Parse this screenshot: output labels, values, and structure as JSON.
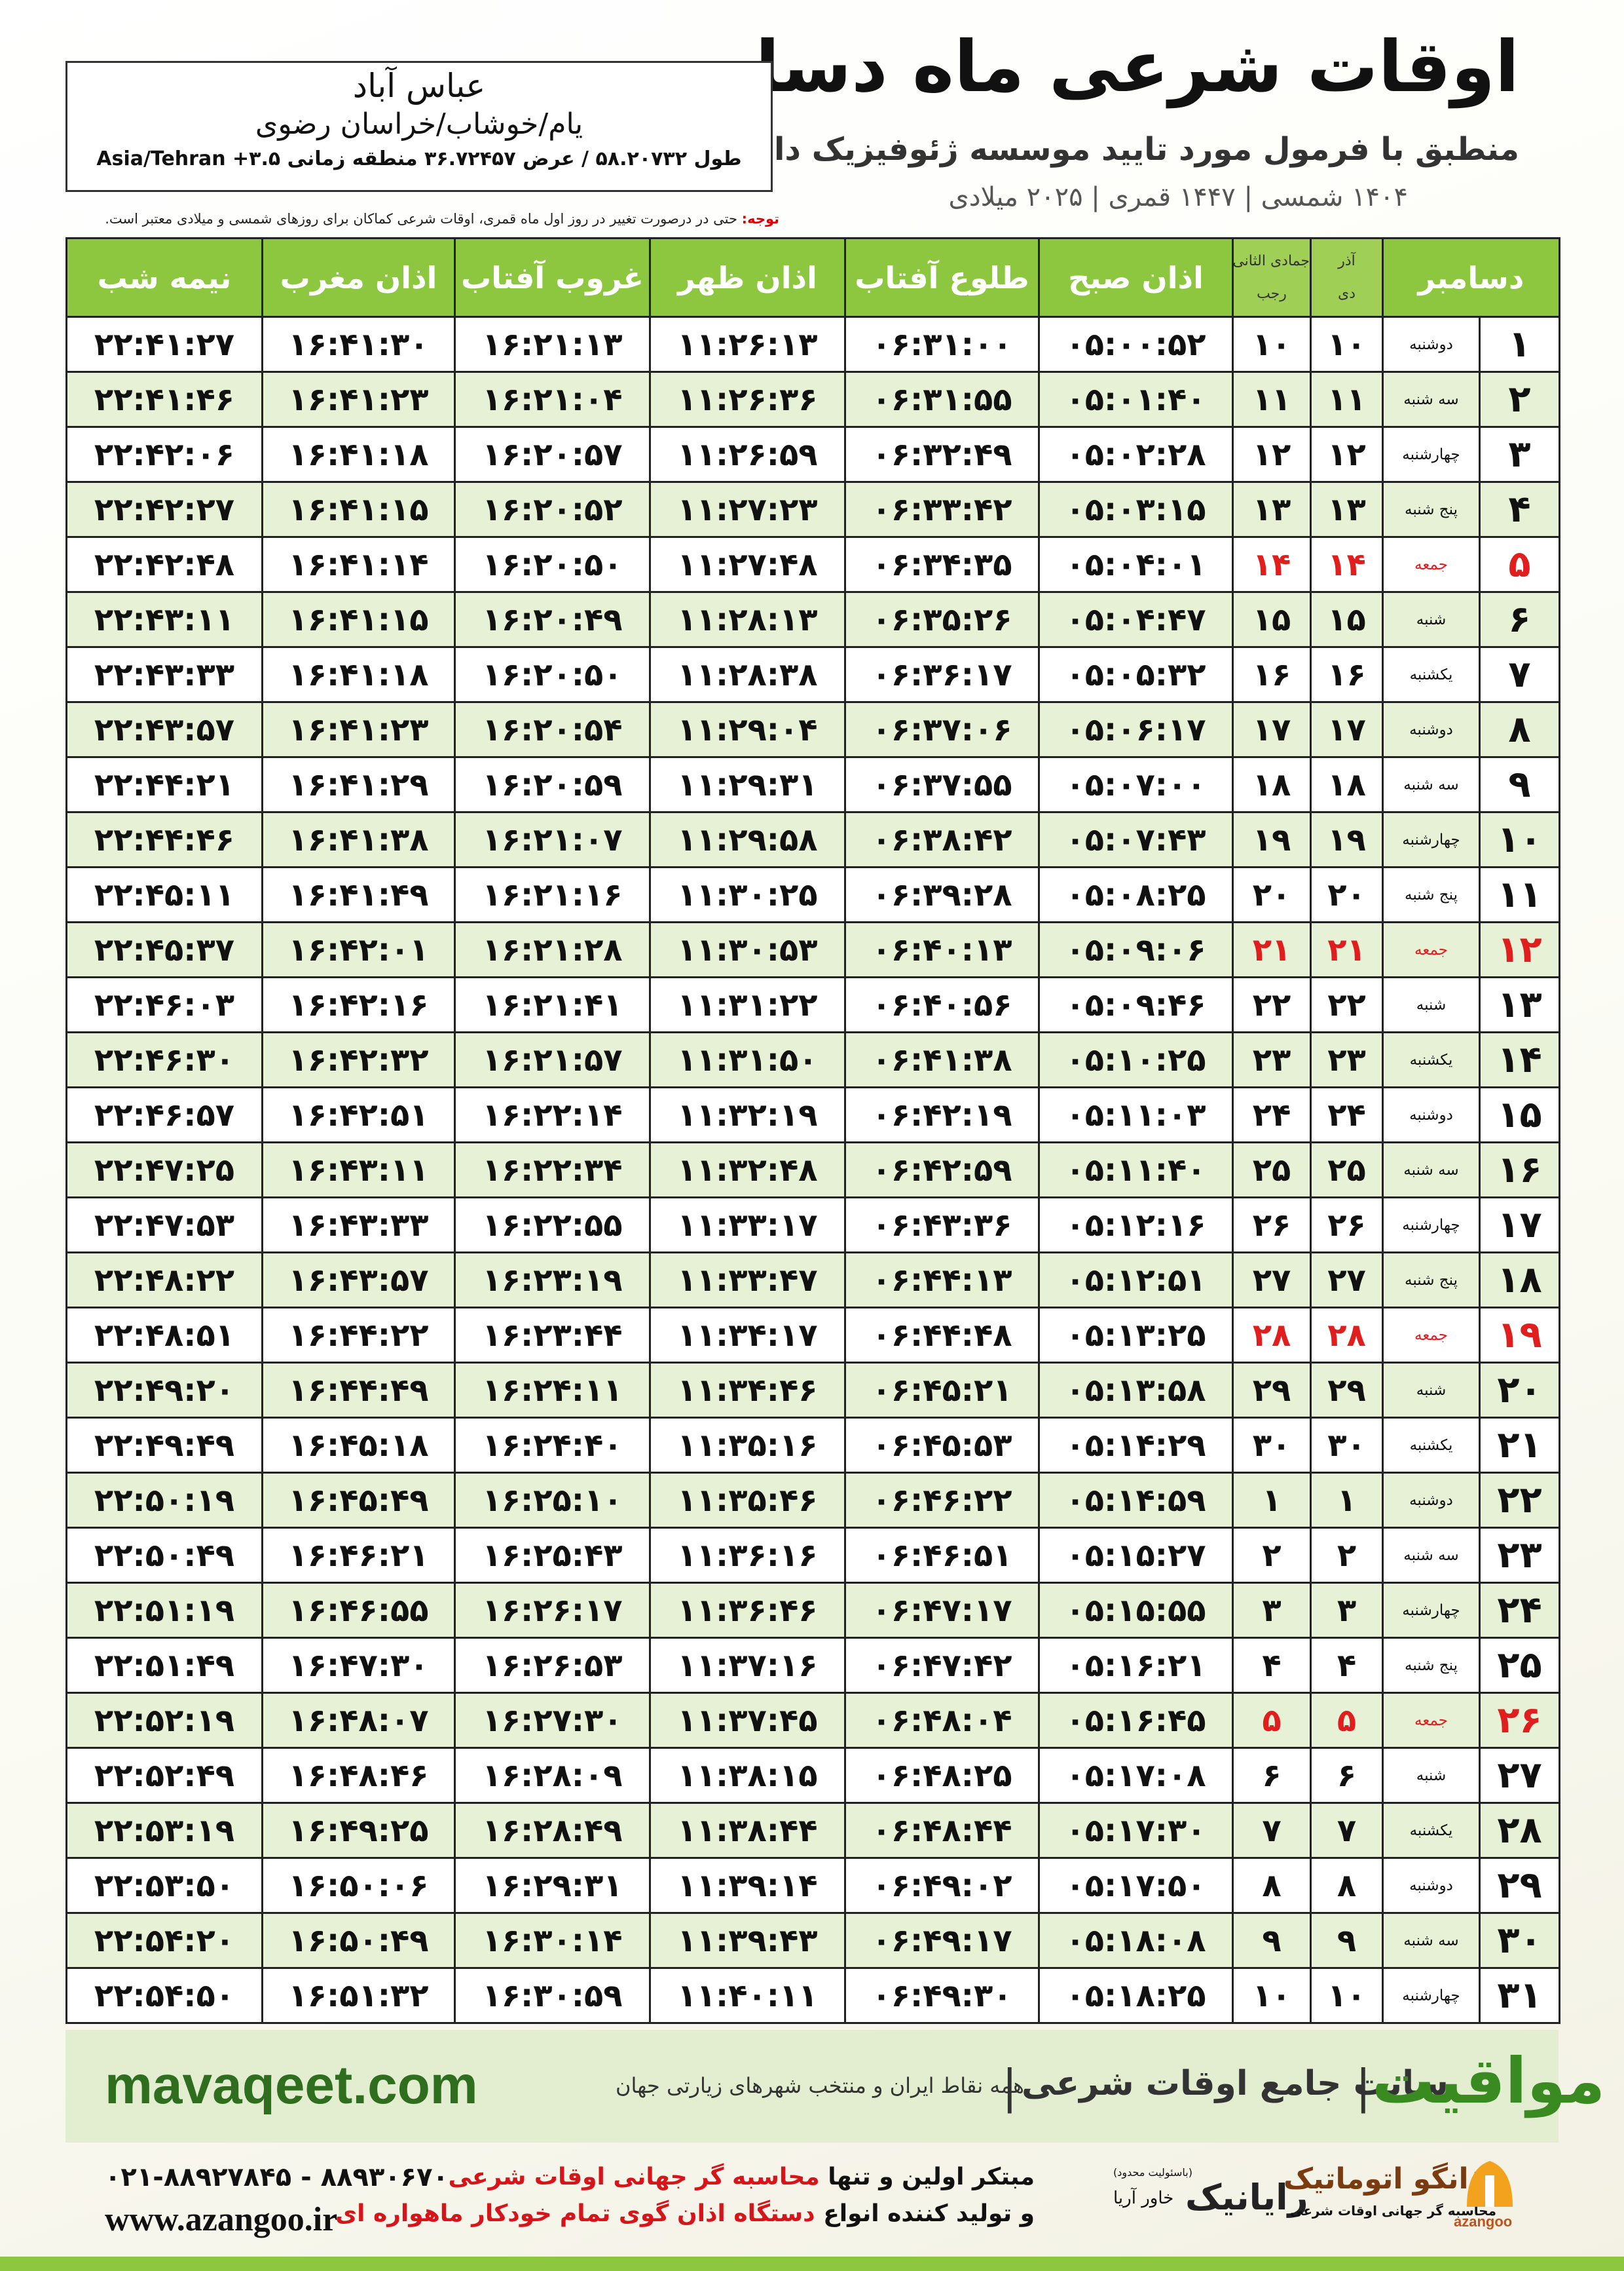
{
  "header": {
    "title": "اوقات شرعی ماه دسامبر",
    "subtitle": "منطبق با فرمول مورد تایید موسسه ژئوفیزیک دانشگاه تهران",
    "dates": "۱۴۰۴ شمسی | ۱۴۴۷ قمری | ۲۰۲۵ میلادی"
  },
  "location": {
    "name": "عباس آباد",
    "region": "یام/خوشاب/خراسان رضوی",
    "coords": "طول ۵۸.۲۰۷۳۲ / عرض ۳۶.۷۲۴۵۷ منطقه زمانی ۳.۵+ Asia/Tehran"
  },
  "note": {
    "label": "توجه:",
    "text": "حتی در درصورت تغییر در روز اول ماه قمری، اوقات شرعی کماکان برای روزهای شمسی و میلادی معتبر است."
  },
  "table": {
    "columns": {
      "day": "دسامبر",
      "shamsi_top": "آذر",
      "shamsi_bottom": "دی",
      "qamari_top": "جمادی الثانی",
      "qamari_bottom": "رجب",
      "fajr": "اذان صبح",
      "sunrise": "طلوع آفتاب",
      "dhuhr": "اذان ظهر",
      "sunset": "غروب آفتاب",
      "maghrib": "اذان مغرب",
      "midnight": "نیمه شب"
    },
    "rows": [
      [
        "۱",
        "دوشنبه",
        "۱۰",
        "۱۰",
        "۰۵:۰۰:۵۲",
        "۰۶:۳۱:۰۰",
        "۱۱:۲۶:۱۳",
        "۱۶:۲۱:۱۳",
        "۱۶:۴۱:۳۰",
        "۲۲:۴۱:۲۷"
      ],
      [
        "۲",
        "سه شنبه",
        "۱۱",
        "۱۱",
        "۰۵:۰۱:۴۰",
        "۰۶:۳۱:۵۵",
        "۱۱:۲۶:۳۶",
        "۱۶:۲۱:۰۴",
        "۱۶:۴۱:۲۳",
        "۲۲:۴۱:۴۶"
      ],
      [
        "۳",
        "چهارشنبه",
        "۱۲",
        "۱۲",
        "۰۵:۰۲:۲۸",
        "۰۶:۳۲:۴۹",
        "۱۱:۲۶:۵۹",
        "۱۶:۲۰:۵۷",
        "۱۶:۴۱:۱۸",
        "۲۲:۴۲:۰۶"
      ],
      [
        "۴",
        "پنج شنبه",
        "۱۳",
        "۱۳",
        "۰۵:۰۳:۱۵",
        "۰۶:۳۳:۴۲",
        "۱۱:۲۷:۲۳",
        "۱۶:۲۰:۵۲",
        "۱۶:۴۱:۱۵",
        "۲۲:۴۲:۲۷"
      ],
      [
        "۵",
        "جمعه",
        "۱۴",
        "۱۴",
        "۰۵:۰۴:۰۱",
        "۰۶:۳۴:۳۵",
        "۱۱:۲۷:۴۸",
        "۱۶:۲۰:۵۰",
        "۱۶:۴۱:۱۴",
        "۲۲:۴۲:۴۸"
      ],
      [
        "۶",
        "شنبه",
        "۱۵",
        "۱۵",
        "۰۵:۰۴:۴۷",
        "۰۶:۳۵:۲۶",
        "۱۱:۲۸:۱۳",
        "۱۶:۲۰:۴۹",
        "۱۶:۴۱:۱۵",
        "۲۲:۴۳:۱۱"
      ],
      [
        "۷",
        "یکشنبه",
        "۱۶",
        "۱۶",
        "۰۵:۰۵:۳۲",
        "۰۶:۳۶:۱۷",
        "۱۱:۲۸:۳۸",
        "۱۶:۲۰:۵۰",
        "۱۶:۴۱:۱۸",
        "۲۲:۴۳:۳۳"
      ],
      [
        "۸",
        "دوشنبه",
        "۱۷",
        "۱۷",
        "۰۵:۰۶:۱۷",
        "۰۶:۳۷:۰۶",
        "۱۱:۲۹:۰۴",
        "۱۶:۲۰:۵۴",
        "۱۶:۴۱:۲۳",
        "۲۲:۴۳:۵۷"
      ],
      [
        "۹",
        "سه شنبه",
        "۱۸",
        "۱۸",
        "۰۵:۰۷:۰۰",
        "۰۶:۳۷:۵۵",
        "۱۱:۲۹:۳۱",
        "۱۶:۲۰:۵۹",
        "۱۶:۴۱:۲۹",
        "۲۲:۴۴:۲۱"
      ],
      [
        "۱۰",
        "چهارشنبه",
        "۱۹",
        "۱۹",
        "۰۵:۰۷:۴۳",
        "۰۶:۳۸:۴۲",
        "۱۱:۲۹:۵۸",
        "۱۶:۲۱:۰۷",
        "۱۶:۴۱:۳۸",
        "۲۲:۴۴:۴۶"
      ],
      [
        "۱۱",
        "پنج شنبه",
        "۲۰",
        "۲۰",
        "۰۵:۰۸:۲۵",
        "۰۶:۳۹:۲۸",
        "۱۱:۳۰:۲۵",
        "۱۶:۲۱:۱۶",
        "۱۶:۴۱:۴۹",
        "۲۲:۴۵:۱۱"
      ],
      [
        "۱۲",
        "جمعه",
        "۲۱",
        "۲۱",
        "۰۵:۰۹:۰۶",
        "۰۶:۴۰:۱۳",
        "۱۱:۳۰:۵۳",
        "۱۶:۲۱:۲۸",
        "۱۶:۴۲:۰۱",
        "۲۲:۴۵:۳۷"
      ],
      [
        "۱۳",
        "شنبه",
        "۲۲",
        "۲۲",
        "۰۵:۰۹:۴۶",
        "۰۶:۴۰:۵۶",
        "۱۱:۳۱:۲۲",
        "۱۶:۲۱:۴۱",
        "۱۶:۴۲:۱۶",
        "۲۲:۴۶:۰۳"
      ],
      [
        "۱۴",
        "یکشنبه",
        "۲۳",
        "۲۳",
        "۰۵:۱۰:۲۵",
        "۰۶:۴۱:۳۸",
        "۱۱:۳۱:۵۰",
        "۱۶:۲۱:۵۷",
        "۱۶:۴۲:۳۲",
        "۲۲:۴۶:۳۰"
      ],
      [
        "۱۵",
        "دوشنبه",
        "۲۴",
        "۲۴",
        "۰۵:۱۱:۰۳",
        "۰۶:۴۲:۱۹",
        "۱۱:۳۲:۱۹",
        "۱۶:۲۲:۱۴",
        "۱۶:۴۲:۵۱",
        "۲۲:۴۶:۵۷"
      ],
      [
        "۱۶",
        "سه شنبه",
        "۲۵",
        "۲۵",
        "۰۵:۱۱:۴۰",
        "۰۶:۴۲:۵۹",
        "۱۱:۳۲:۴۸",
        "۱۶:۲۲:۳۴",
        "۱۶:۴۳:۱۱",
        "۲۲:۴۷:۲۵"
      ],
      [
        "۱۷",
        "چهارشنبه",
        "۲۶",
        "۲۶",
        "۰۵:۱۲:۱۶",
        "۰۶:۴۳:۳۶",
        "۱۱:۳۳:۱۷",
        "۱۶:۲۲:۵۵",
        "۱۶:۴۳:۳۳",
        "۲۲:۴۷:۵۳"
      ],
      [
        "۱۸",
        "پنج شنبه",
        "۲۷",
        "۲۷",
        "۰۵:۱۲:۵۱",
        "۰۶:۴۴:۱۳",
        "۱۱:۳۳:۴۷",
        "۱۶:۲۳:۱۹",
        "۱۶:۴۳:۵۷",
        "۲۲:۴۸:۲۲"
      ],
      [
        "۱۹",
        "جمعه",
        "۲۸",
        "۲۸",
        "۰۵:۱۳:۲۵",
        "۰۶:۴۴:۴۸",
        "۱۱:۳۴:۱۷",
        "۱۶:۲۳:۴۴",
        "۱۶:۴۴:۲۲",
        "۲۲:۴۸:۵۱"
      ],
      [
        "۲۰",
        "شنبه",
        "۲۹",
        "۲۹",
        "۰۵:۱۳:۵۸",
        "۰۶:۴۵:۲۱",
        "۱۱:۳۴:۴۶",
        "۱۶:۲۴:۱۱",
        "۱۶:۴۴:۴۹",
        "۲۲:۴۹:۲۰"
      ],
      [
        "۲۱",
        "یکشنبه",
        "۳۰",
        "۳۰",
        "۰۵:۱۴:۲۹",
        "۰۶:۴۵:۵۳",
        "۱۱:۳۵:۱۶",
        "۱۶:۲۴:۴۰",
        "۱۶:۴۵:۱۸",
        "۲۲:۴۹:۴۹"
      ],
      [
        "۲۲",
        "دوشنبه",
        "۱",
        "۱",
        "۰۵:۱۴:۵۹",
        "۰۶:۴۶:۲۲",
        "۱۱:۳۵:۴۶",
        "۱۶:۲۵:۱۰",
        "۱۶:۴۵:۴۹",
        "۲۲:۵۰:۱۹"
      ],
      [
        "۲۳",
        "سه شنبه",
        "۲",
        "۲",
        "۰۵:۱۵:۲۷",
        "۰۶:۴۶:۵۱",
        "۱۱:۳۶:۱۶",
        "۱۶:۲۵:۴۳",
        "۱۶:۴۶:۲۱",
        "۲۲:۵۰:۴۹"
      ],
      [
        "۲۴",
        "چهارشنبه",
        "۳",
        "۳",
        "۰۵:۱۵:۵۵",
        "۰۶:۴۷:۱۷",
        "۱۱:۳۶:۴۶",
        "۱۶:۲۶:۱۷",
        "۱۶:۴۶:۵۵",
        "۲۲:۵۱:۱۹"
      ],
      [
        "۲۵",
        "پنج شنبه",
        "۴",
        "۴",
        "۰۵:۱۶:۲۱",
        "۰۶:۴۷:۴۲",
        "۱۱:۳۷:۱۶",
        "۱۶:۲۶:۵۳",
        "۱۶:۴۷:۳۰",
        "۲۲:۵۱:۴۹"
      ],
      [
        "۲۶",
        "جمعه",
        "۵",
        "۵",
        "۰۵:۱۶:۴۵",
        "۰۶:۴۸:۰۴",
        "۱۱:۳۷:۴۵",
        "۱۶:۲۷:۳۰",
        "۱۶:۴۸:۰۷",
        "۲۲:۵۲:۱۹"
      ],
      [
        "۲۷",
        "شنبه",
        "۶",
        "۶",
        "۰۵:۱۷:۰۸",
        "۰۶:۴۸:۲۵",
        "۱۱:۳۸:۱۵",
        "۱۶:۲۸:۰۹",
        "۱۶:۴۸:۴۶",
        "۲۲:۵۲:۴۹"
      ],
      [
        "۲۸",
        "یکشنبه",
        "۷",
        "۷",
        "۰۵:۱۷:۳۰",
        "۰۶:۴۸:۴۴",
        "۱۱:۳۸:۴۴",
        "۱۶:۲۸:۴۹",
        "۱۶:۴۹:۲۵",
        "۲۲:۵۳:۱۹"
      ],
      [
        "۲۹",
        "دوشنبه",
        "۸",
        "۸",
        "۰۵:۱۷:۵۰",
        "۰۶:۴۹:۰۲",
        "۱۱:۳۹:۱۴",
        "۱۶:۲۹:۳۱",
        "۱۶:۵۰:۰۶",
        "۲۲:۵۳:۵۰"
      ],
      [
        "۳۰",
        "سه شنبه",
        "۹",
        "۹",
        "۰۵:۱۸:۰۸",
        "۰۶:۴۹:۱۷",
        "۱۱:۳۹:۴۳",
        "۱۶:۳۰:۱۴",
        "۱۶:۵۰:۴۹",
        "۲۲:۵۴:۲۰"
      ],
      [
        "۳۱",
        "چهارشنبه",
        "۱۰",
        "۱۰",
        "۰۵:۱۸:۲۵",
        "۰۶:۴۹:۳۰",
        "۱۱:۴۰:۱۱",
        "۱۶:۳۰:۵۹",
        "۱۶:۵۱:۳۲",
        "۲۲:۵۴:۵۰"
      ]
    ]
  },
  "banner": {
    "brand": "مواقیت",
    "site_title": "سایت جامع اوقات شرعی",
    "site_desc": "همه نقاط ایران و منتخب شهرهای زیارتی جهان",
    "url": "mavaqeet.com"
  },
  "footer": {
    "phones": "۰۲۱-۸۸۹۲۷۸۴۵ - ۸۸۹۳۰۶۷۰",
    "website": "www.azangoo.ir",
    "line1_a": "مبتکر اولین و تنها ",
    "line1_b": "محاسبه گر جهانی اوقات شرعی",
    "line2_a": "و تولید کننده انواع ",
    "line2_b": "دستگاه اذان گوی تمام خودکار ماهواره ای",
    "partner_note": "(باسئولیت محدود)",
    "partner_sub": "خاور آریا",
    "partner_name": "رایانیک",
    "logo_name": "اذانگو اتوماتیک",
    "logo_sub": "محاسبه گر جهانی اوقات شرعی",
    "logo_latin": "azangoo"
  }
}
